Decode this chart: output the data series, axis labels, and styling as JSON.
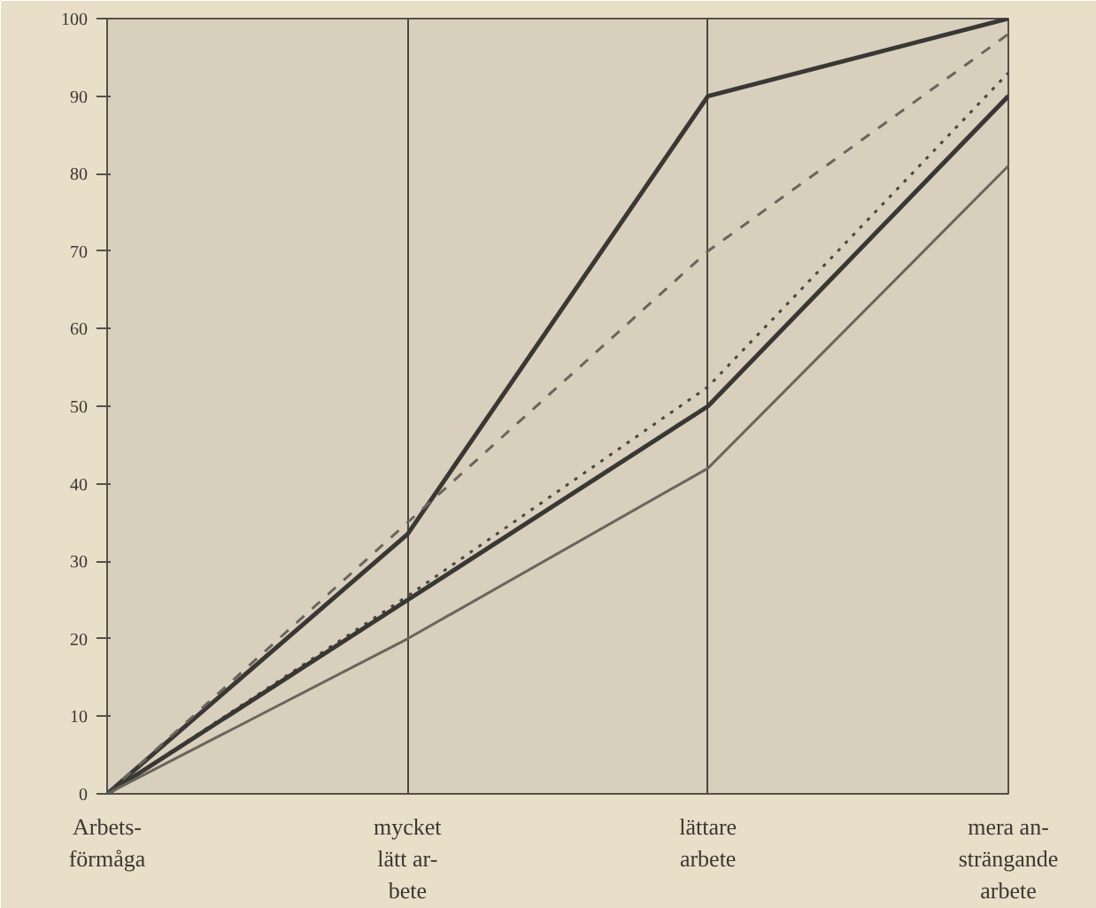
{
  "chart_data": {
    "type": "line",
    "categories": [
      "Arbets-\nförmåga",
      "mycket\nlätt ar-\nbete",
      "lättare\narbete",
      "mera an-\nsträngande\narbete"
    ],
    "series": [
      {
        "color": "#3a3835",
        "values": [
          0,
          33.5,
          90,
          100
        ],
        "line_style": "solid"
      },
      {
        "color": "#6a655d",
        "values": [
          0,
          35,
          70,
          98
        ],
        "line_style": "dashed"
      },
      {
        "color": "#4a4640",
        "values": [
          0,
          25.5,
          52.5,
          93
        ],
        "line_style": "dotted"
      },
      {
        "color": "#3a3835",
        "values": [
          0,
          25,
          50,
          90
        ],
        "line_style": "solid"
      },
      {
        "color": "#6a655d",
        "values": [
          0,
          20,
          42,
          81
        ],
        "line_style": "solid"
      }
    ],
    "ylim": [
      0,
      100
    ],
    "yticks": [
      0,
      10,
      20,
      30,
      40,
      50,
      60,
      70,
      80,
      90,
      100
    ],
    "grid": "x"
  }
}
